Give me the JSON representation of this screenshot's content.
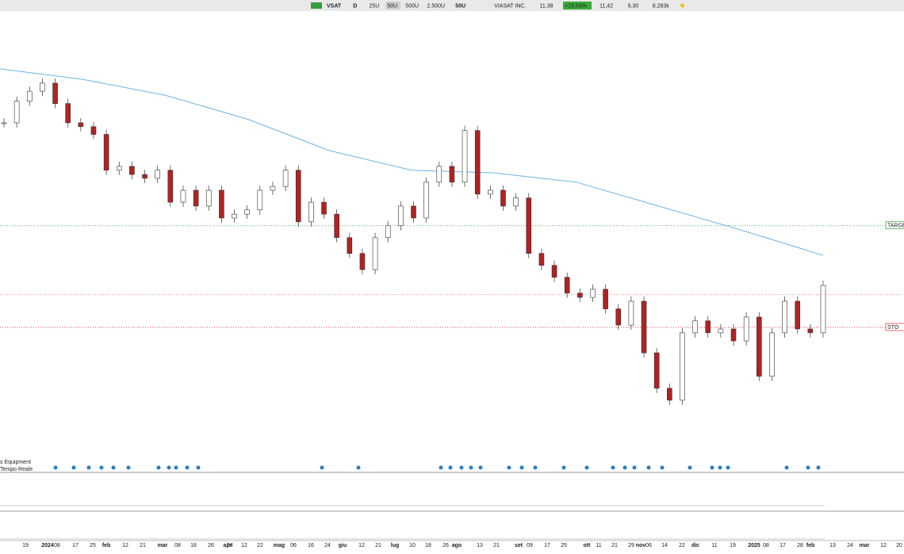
{
  "toolbar": {
    "symbol": "VSAT",
    "period": "D",
    "buttons": [
      "25U",
      "50U",
      "500U",
      "2.500U"
    ],
    "zoom": "50U",
    "company": "VIASAT INC.",
    "last": "11,38",
    "change": "+19,54%",
    "high": "11,42",
    "low": "9,30",
    "volume": "8.283k"
  },
  "panel_labels": [
    "s Equipment",
    "Tempo Reale"
  ],
  "chart_data": {
    "type": "candlestick",
    "closes": [
      15.6,
      16.16,
      16.42,
      16.63,
      16.1,
      15.6,
      15.5,
      15.3,
      14.37,
      14.47,
      14.26,
      14.16,
      14.37,
      13.54,
      13.85,
      13.44,
      13.85,
      13.13,
      13.23,
      13.34,
      13.85,
      13.95,
      14.37,
      13.03,
      13.54,
      13.23,
      12.62,
      12.21,
      11.79,
      12.62,
      12.93,
      13.44,
      13.13,
      14.06,
      14.47,
      14.06,
      15.4,
      13.75,
      13.85,
      13.44,
      13.65,
      12.21,
      11.9,
      11.59,
      11.18,
      11.07,
      11.28,
      10.77,
      10.35,
      10.97,
      9.63,
      8.71,
      8.4,
      10.15,
      10.46,
      10.15,
      10.25,
      9.94,
      10.56,
      9.02,
      10.15,
      10.97,
      10.25,
      10.15,
      11.38
    ],
    "moving_average": {
      "color": "#6cb4e4",
      "values": [
        17.0,
        16.73,
        16.32,
        15.7,
        14.88,
        14.37,
        14.3,
        14.06,
        13.44,
        12.82,
        12.16
      ]
    },
    "levels": [
      {
        "label": "TARGET",
        "value": 12.93,
        "color": "#2a9d2a"
      },
      {
        "value": 11.14,
        "color": "#e06060"
      },
      {
        "label": "STO",
        "value": 10.29,
        "color": "#e03030"
      }
    ],
    "ylim": [
      7,
      18.5
    ],
    "x_labels": [
      "19",
      "2024",
      "08",
      "17",
      "25",
      "feb",
      "12",
      "21",
      "mar",
      "08",
      "18",
      "26",
      "apr",
      "04",
      "12",
      "22",
      "mag",
      "06",
      "16",
      "24",
      "giu",
      "12",
      "21",
      "lug",
      "10",
      "18",
      "26",
      "ago",
      "13",
      "21",
      "set",
      "09",
      "17",
      "25",
      "ott",
      "11",
      "21",
      "29",
      "nov",
      "06",
      "14",
      "22",
      "dic",
      "11",
      "19",
      "2025",
      "08",
      "17",
      "28",
      "feb",
      "13",
      "24",
      "mar",
      "12",
      "20"
    ]
  }
}
